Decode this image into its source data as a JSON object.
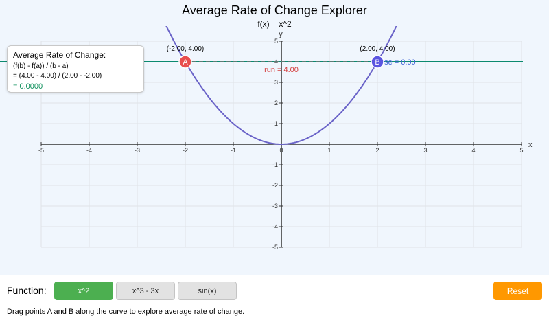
{
  "title": "Average Rate of Change Explorer",
  "subtitle": "f(x) = x^2",
  "axes": {
    "x_label": "x",
    "y_label": "y",
    "x_range": [
      -5,
      5
    ],
    "y_range": [
      -5,
      5
    ],
    "x_ticks": [
      "-5",
      "-4",
      "-3",
      "-2",
      "-1",
      "0",
      "1",
      "2",
      "3",
      "4",
      "5"
    ],
    "y_ticks": [
      "-5",
      "-4",
      "-3",
      "-2",
      "-1",
      "1",
      "2",
      "3",
      "4",
      "5"
    ]
  },
  "curve": {
    "expression": "x^2",
    "color": "#6a63c8"
  },
  "secant_color": "#0b8a6f",
  "point_a": {
    "label": "A",
    "x": -2,
    "y": 4,
    "coord_text": "(-2.00, 4.00)",
    "color": "#e84d4d"
  },
  "point_b": {
    "label": "B",
    "x": 2,
    "y": 4,
    "coord_text": "(2.00, 4.00)",
    "color": "#5b55e0"
  },
  "run_text": "run = 4.00",
  "rise_text": "rise = 0.00",
  "info": {
    "title": "Average Rate of Change:",
    "formula": "(f(b) - f(a)) / (b - a)",
    "substitution": "= (4.00 - 4.00) / (2.00 - -2.00)",
    "result": "= 0.0000"
  },
  "controls": {
    "function_label": "Function:",
    "functions": [
      "x^2",
      "x^3 - 3x",
      "sin(x)"
    ],
    "active_function": "x^2",
    "active_color": "#4caf50",
    "reset_label": "Reset",
    "reset_color": "#ff9800",
    "instructions": "Drag points A and B along the curve to explore average rate of change."
  }
}
